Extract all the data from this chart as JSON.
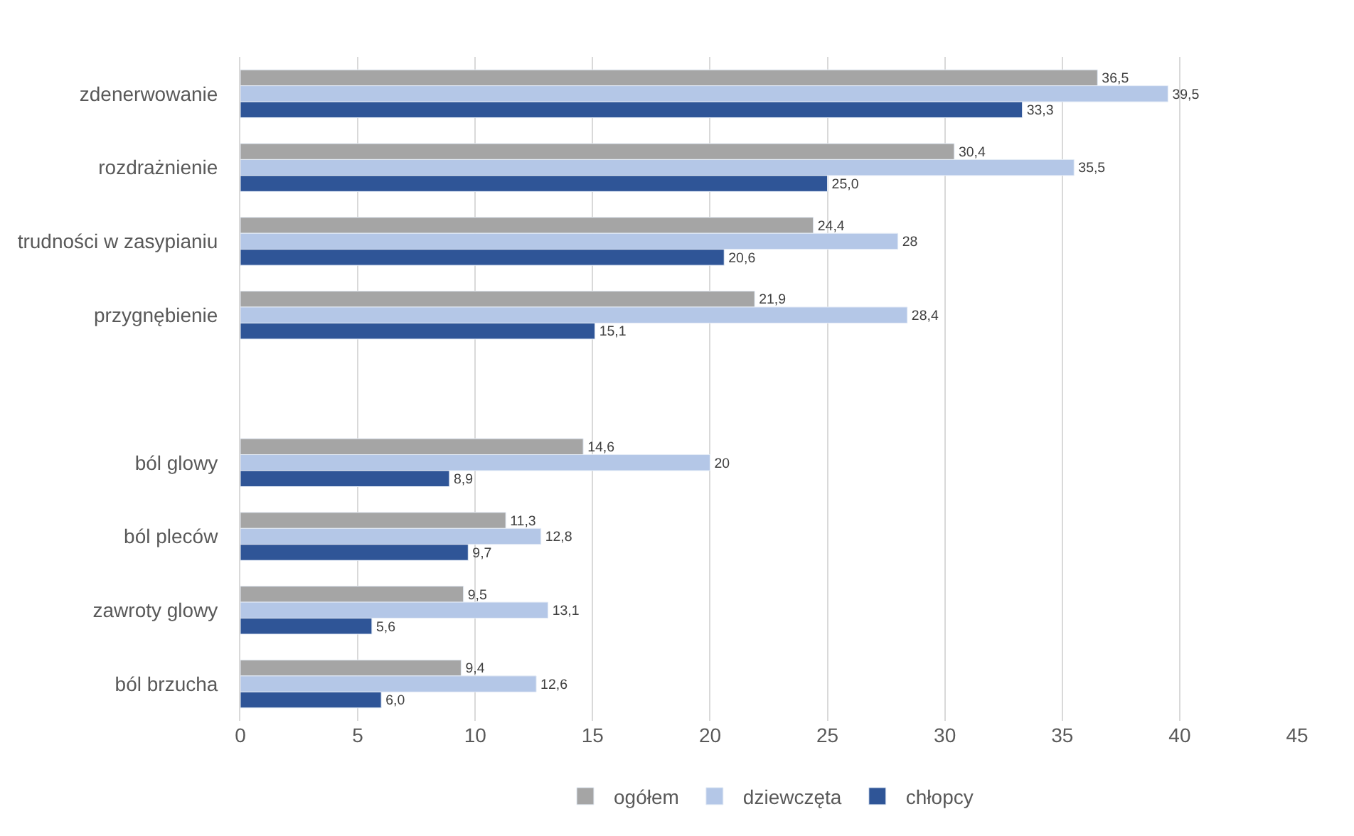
{
  "chart_data": {
    "type": "bar",
    "orientation": "horizontal",
    "categories": [
      "zdenerwowanie",
      "rozdrażnienie",
      "trudności w zasypianiu",
      "przygnębienie",
      null,
      "ból glowy",
      "ból pleców",
      "zawroty glowy",
      "ból brzucha"
    ],
    "series": [
      {
        "name": "ogółem",
        "color": "#a5a5a5",
        "values": [
          36.5,
          30.4,
          24.4,
          21.9,
          null,
          14.6,
          11.3,
          9.5,
          9.4
        ],
        "value_labels": [
          "36,5",
          "30,4",
          "24,4",
          "21,9",
          null,
          "14,6",
          "11,3",
          "9,5",
          "9,4"
        ]
      },
      {
        "name": "dziewczęta",
        "color": "#b4c7e7",
        "values": [
          39.5,
          35.5,
          28,
          28.4,
          null,
          20,
          12.8,
          13.1,
          12.6
        ],
        "value_labels": [
          "39,5",
          "35,5",
          "28",
          "28,4",
          null,
          "20",
          "12,8",
          "13,1",
          "12,6"
        ]
      },
      {
        "name": "chłopcy",
        "color": "#2f5597",
        "values": [
          33.3,
          25.0,
          20.6,
          15.1,
          null,
          8.9,
          9.7,
          5.6,
          6.0
        ],
        "value_labels": [
          "33,3",
          "25,0",
          "20,6",
          "15,1",
          null,
          "8,9",
          "9,7",
          "5,6",
          "6,0"
        ]
      }
    ],
    "xlim": [
      0,
      45
    ],
    "xticks": [
      0,
      5,
      10,
      15,
      20,
      25,
      30,
      35,
      40,
      45
    ],
    "grid": "x",
    "legend": "bottom"
  }
}
